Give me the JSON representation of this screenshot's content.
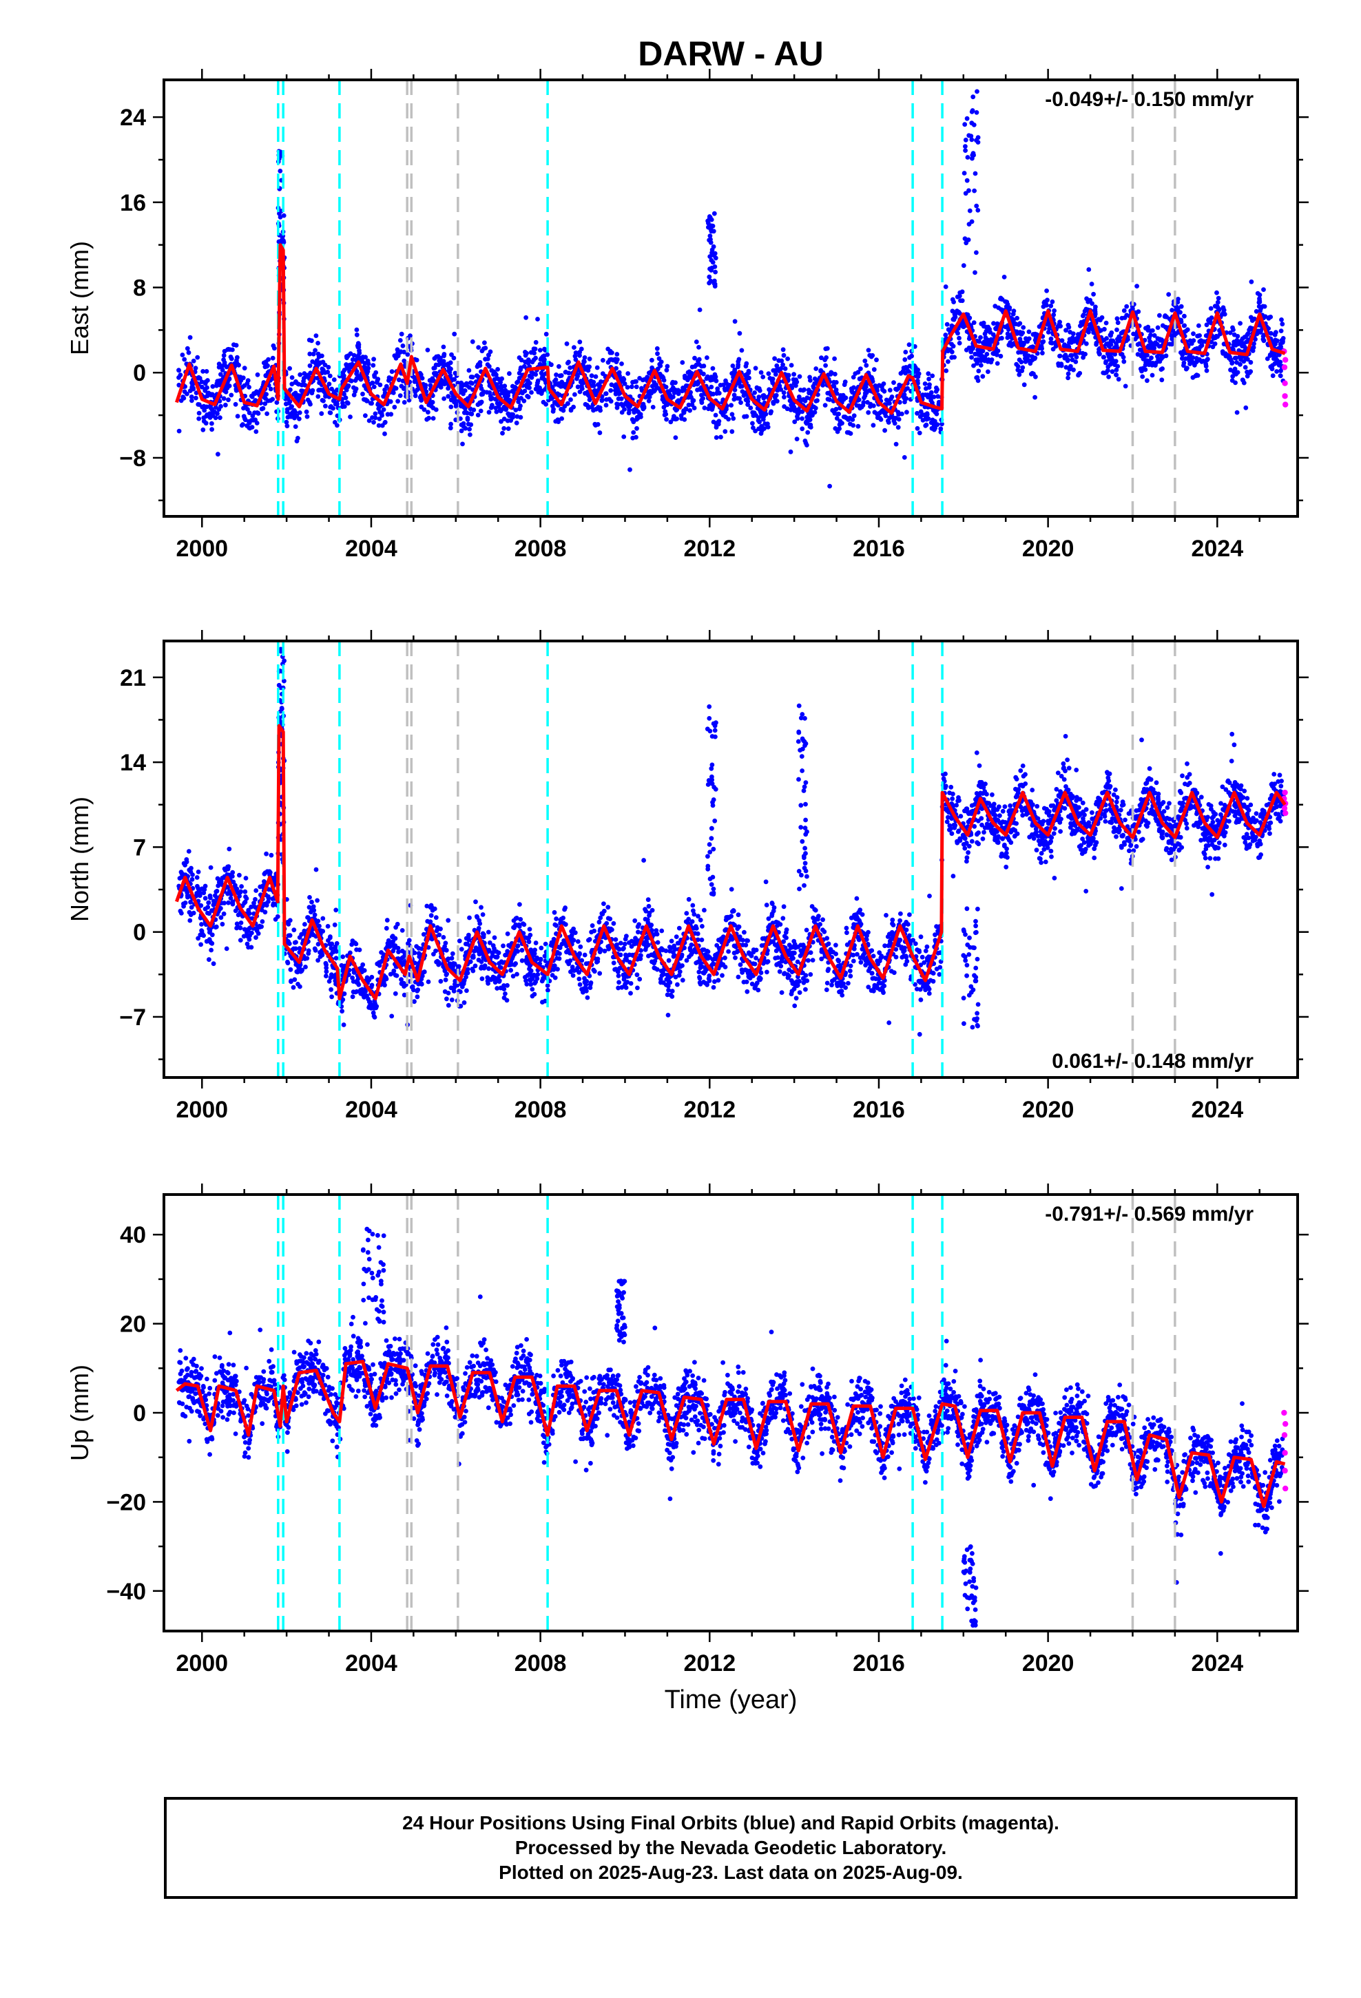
{
  "title": "DARW - AU",
  "footer": {
    "line1": "24 Hour Positions Using Final Orbits (blue) and Rapid Orbits (magenta).",
    "line2": "Processed by the Nevada Geodetic Laboratory.",
    "line3": "Plotted on 2025-Aug-23. Last data on 2025-Aug-09."
  },
  "colors": {
    "final_orbits": "#0000ff",
    "rapid_orbits": "#ff00ff",
    "model_fit": "#ff0000",
    "equipment_change": "#00ffff",
    "other_event": "#c0c0c0"
  },
  "chart_data": [
    {
      "type": "scatter",
      "component": "East",
      "ylabel": "East (mm)",
      "xlabel": "",
      "xlim": [
        1999.1,
        2025.9
      ],
      "ylim": [
        -13.5,
        27.5
      ],
      "xticks": [
        2000,
        2004,
        2008,
        2012,
        2016,
        2020,
        2024
      ],
      "yticks": [
        -8,
        0,
        8,
        16,
        24
      ],
      "rate_label": "-0.049+/- 0.150 mm/yr",
      "rate_position": "top-right",
      "cyan_events": [
        2001.8,
        2001.92,
        2003.25,
        2008.17,
        2016.8,
        2017.5
      ],
      "gray_events": [
        2004.85,
        2004.95,
        2006.05,
        2022.0,
        2023.0
      ],
      "model_fit": [
        [
          1999.4,
          -2.8
        ],
        [
          1999.7,
          0.8
        ],
        [
          2000.0,
          -2.5
        ],
        [
          2000.3,
          -3.0
        ],
        [
          2000.7,
          0.7
        ],
        [
          2001.0,
          -2.8
        ],
        [
          2001.3,
          -3.1
        ],
        [
          2001.7,
          0.6
        ],
        [
          2001.8,
          -2.5
        ],
        [
          2001.85,
          12.0
        ],
        [
          2001.92,
          11.5
        ],
        [
          2001.95,
          -1.5
        ],
        [
          2002.3,
          -3.2
        ],
        [
          2002.7,
          0.4
        ],
        [
          2003.0,
          -2.0
        ],
        [
          2003.25,
          -2.5
        ],
        [
          2003.3,
          -1.5
        ],
        [
          2003.7,
          1.0
        ],
        [
          2004.0,
          -2.0
        ],
        [
          2004.3,
          -3.0
        ],
        [
          2004.7,
          0.8
        ],
        [
          2004.85,
          -1.0
        ],
        [
          2004.95,
          1.5
        ],
        [
          2005.3,
          -2.8
        ],
        [
          2005.7,
          0.3
        ],
        [
          2006.0,
          -2.0
        ],
        [
          2006.3,
          -3.2
        ],
        [
          2006.7,
          0.4
        ],
        [
          2007.0,
          -2.3
        ],
        [
          2007.3,
          -3.3
        ],
        [
          2007.7,
          0.3
        ],
        [
          2008.17,
          0.5
        ],
        [
          2008.2,
          -1.5
        ],
        [
          2008.5,
          -3.0
        ],
        [
          2008.9,
          1.0
        ],
        [
          2009.3,
          -2.9
        ],
        [
          2009.7,
          0.4
        ],
        [
          2010.0,
          -2.2
        ],
        [
          2010.3,
          -3.2
        ],
        [
          2010.7,
          0.2
        ],
        [
          2011.0,
          -2.5
        ],
        [
          2011.3,
          -3.3
        ],
        [
          2011.7,
          0.1
        ],
        [
          2012.0,
          -2.4
        ],
        [
          2012.3,
          -3.4
        ],
        [
          2012.7,
          0.1
        ],
        [
          2013.0,
          -2.5
        ],
        [
          2013.3,
          -3.5
        ],
        [
          2013.7,
          0.0
        ],
        [
          2014.0,
          -2.6
        ],
        [
          2014.3,
          -3.6
        ],
        [
          2014.7,
          -0.1
        ],
        [
          2015.0,
          -2.7
        ],
        [
          2015.3,
          -3.7
        ],
        [
          2015.7,
          -0.2
        ],
        [
          2016.0,
          -2.8
        ],
        [
          2016.3,
          -3.8
        ],
        [
          2016.7,
          -0.3
        ],
        [
          2016.8,
          -0.5
        ],
        [
          2017.0,
          -2.8
        ],
        [
          2017.3,
          -3.2
        ],
        [
          2017.49,
          -3.4
        ],
        [
          2017.51,
          2.0
        ],
        [
          2017.7,
          3.5
        ],
        [
          2018.0,
          5.5
        ],
        [
          2018.3,
          2.5
        ],
        [
          2018.7,
          2.2
        ],
        [
          2019.0,
          5.8
        ],
        [
          2019.3,
          2.3
        ],
        [
          2019.7,
          2.0
        ],
        [
          2020.0,
          5.8
        ],
        [
          2020.3,
          2.2
        ],
        [
          2020.7,
          2.0
        ],
        [
          2021.0,
          5.8
        ],
        [
          2021.3,
          2.1
        ],
        [
          2021.7,
          2.0
        ],
        [
          2022.0,
          5.7
        ],
        [
          2022.3,
          2.0
        ],
        [
          2022.7,
          1.9
        ],
        [
          2023.0,
          5.6
        ],
        [
          2023.3,
          2.0
        ],
        [
          2023.7,
          1.8
        ],
        [
          2024.0,
          5.6
        ],
        [
          2024.3,
          1.9
        ],
        [
          2024.7,
          1.7
        ],
        [
          2025.0,
          5.5
        ],
        [
          2025.3,
          2.2
        ],
        [
          2025.6,
          1.8
        ]
      ],
      "rapid_points": [
        [
          2025.58,
          2.0
        ],
        [
          2025.59,
          0.5
        ],
        [
          2025.6,
          -1.0
        ],
        [
          2025.6,
          -2.2
        ],
        [
          2025.61,
          -3.0
        ],
        [
          2025.61,
          1.2
        ]
      ],
      "spikes": [
        [
          2001.8,
          2001.95,
          8,
          21
        ],
        [
          2011.95,
          2012.15,
          8,
          15
        ],
        [
          2018.0,
          2018.35,
          8,
          27
        ]
      ]
    },
    {
      "type": "scatter",
      "component": "North",
      "ylabel": "North (mm)",
      "xlabel": "",
      "xlim": [
        1999.1,
        2025.9
      ],
      "ylim": [
        -12,
        24
      ],
      "xticks": [
        2000,
        2004,
        2008,
        2012,
        2016,
        2020,
        2024
      ],
      "yticks": [
        -7,
        0,
        7,
        14,
        21
      ],
      "rate_label": "0.061+/- 0.148 mm/yr",
      "rate_position": "bottom-right",
      "cyan_events": [
        2001.8,
        2001.92,
        2003.25,
        2008.17,
        2016.8,
        2017.5
      ],
      "gray_events": [
        2004.85,
        2004.95,
        2006.05,
        2022.0,
        2023.0
      ],
      "model_fit": [
        [
          1999.4,
          2.5
        ],
        [
          1999.6,
          4.5
        ],
        [
          1999.9,
          2.0
        ],
        [
          2000.2,
          0.5
        ],
        [
          2000.6,
          4.5
        ],
        [
          2000.9,
          2.0
        ],
        [
          2001.2,
          0.5
        ],
        [
          2001.6,
          4.5
        ],
        [
          2001.79,
          2.5
        ],
        [
          2001.82,
          17.0
        ],
        [
          2001.92,
          16.5
        ],
        [
          2001.95,
          -1.0
        ],
        [
          2002.3,
          -2.5
        ],
        [
          2002.6,
          1.0
        ],
        [
          2002.9,
          -1.5
        ],
        [
          2003.2,
          -3.0
        ],
        [
          2003.25,
          -5.5
        ],
        [
          2003.5,
          -2.0
        ],
        [
          2003.8,
          -4.0
        ],
        [
          2004.1,
          -5.5
        ],
        [
          2004.4,
          -1.5
        ],
        [
          2004.8,
          -3.5
        ],
        [
          2004.9,
          -2.0
        ],
        [
          2005.1,
          -4.0
        ],
        [
          2005.4,
          0.5
        ],
        [
          2005.8,
          -3.0
        ],
        [
          2006.1,
          -4.0
        ],
        [
          2006.5,
          0.0
        ],
        [
          2006.8,
          -2.5
        ],
        [
          2007.1,
          -3.5
        ],
        [
          2007.5,
          0.0
        ],
        [
          2007.8,
          -2.5
        ],
        [
          2008.17,
          -3.5
        ],
        [
          2008.5,
          0.5
        ],
        [
          2008.8,
          -2.0
        ],
        [
          2009.1,
          -3.5
        ],
        [
          2009.5,
          0.5
        ],
        [
          2009.8,
          -2.0
        ],
        [
          2010.1,
          -3.5
        ],
        [
          2010.5,
          0.5
        ],
        [
          2010.8,
          -2.0
        ],
        [
          2011.1,
          -3.5
        ],
        [
          2011.5,
          0.5
        ],
        [
          2011.8,
          -2.0
        ],
        [
          2012.1,
          -3.5
        ],
        [
          2012.5,
          0.5
        ],
        [
          2012.8,
          -2.0
        ],
        [
          2013.1,
          -3.5
        ],
        [
          2013.5,
          0.5
        ],
        [
          2013.8,
          -2.0
        ],
        [
          2014.1,
          -3.5
        ],
        [
          2014.5,
          0.5
        ],
        [
          2014.8,
          -2.0
        ],
        [
          2015.1,
          -3.8
        ],
        [
          2015.5,
          0.5
        ],
        [
          2015.8,
          -2.2
        ],
        [
          2016.1,
          -3.8
        ],
        [
          2016.5,
          0.5
        ],
        [
          2016.8,
          -2.0
        ],
        [
          2017.1,
          -4.0
        ],
        [
          2017.48,
          0.0
        ],
        [
          2017.5,
          11.5
        ],
        [
          2017.8,
          9.5
        ],
        [
          2018.1,
          8.0
        ],
        [
          2018.4,
          11.0
        ],
        [
          2018.7,
          9.0
        ],
        [
          2019.0,
          8.0
        ],
        [
          2019.4,
          11.5
        ],
        [
          2019.7,
          9.0
        ],
        [
          2020.0,
          8.0
        ],
        [
          2020.4,
          11.5
        ],
        [
          2020.7,
          9.0
        ],
        [
          2021.0,
          8.0
        ],
        [
          2021.4,
          11.5
        ],
        [
          2021.7,
          9.0
        ],
        [
          2022.0,
          7.8
        ],
        [
          2022.4,
          11.5
        ],
        [
          2022.7,
          9.0
        ],
        [
          2023.0,
          7.8
        ],
        [
          2023.4,
          11.5
        ],
        [
          2023.7,
          9.0
        ],
        [
          2024.0,
          7.8
        ],
        [
          2024.4,
          11.5
        ],
        [
          2024.7,
          9.0
        ],
        [
          2025.0,
          8.0
        ],
        [
          2025.4,
          11.5
        ],
        [
          2025.6,
          10.5
        ]
      ],
      "rapid_points": [
        [
          2025.58,
          11.0
        ],
        [
          2025.59,
          10.2
        ],
        [
          2025.6,
          11.5
        ],
        [
          2025.61,
          9.8
        ],
        [
          2025.61,
          10.6
        ]
      ],
      "spikes": [
        [
          2001.8,
          2001.95,
          5,
          24
        ],
        [
          2011.95,
          2012.15,
          3,
          19
        ],
        [
          2014.1,
          2014.3,
          3,
          19
        ],
        [
          2018.0,
          2018.35,
          -8,
          2
        ]
      ]
    },
    {
      "type": "scatter",
      "component": "Up",
      "ylabel": "Up (mm)",
      "xlabel": "Time (year)",
      "xlim": [
        1999.1,
        2025.9
      ],
      "ylim": [
        -49,
        49
      ],
      "xticks": [
        2000,
        2004,
        2008,
        2012,
        2016,
        2020,
        2024
      ],
      "yticks": [
        -40,
        -20,
        0,
        20,
        40
      ],
      "rate_label": "-0.791+/- 0.569 mm/yr",
      "rate_position": "top-right",
      "cyan_events": [
        2001.8,
        2001.92,
        2003.25,
        2008.17,
        2016.8,
        2017.5
      ],
      "gray_events": [
        2004.85,
        2004.95,
        2006.05,
        2022.0,
        2023.0
      ],
      "model_fit": [
        [
          1999.4,
          5.0
        ],
        [
          1999.6,
          6.5
        ],
        [
          1999.9,
          6.0
        ],
        [
          2000.2,
          -4.0
        ],
        [
          2000.4,
          6.0
        ],
        [
          2000.8,
          5.0
        ],
        [
          2001.1,
          -5.0
        ],
        [
          2001.3,
          6.0
        ],
        [
          2001.7,
          5.0
        ],
        [
          2001.85,
          -3.0
        ],
        [
          2001.92,
          6.0
        ],
        [
          2002.0,
          -2.0
        ],
        [
          2002.3,
          9.0
        ],
        [
          2002.7,
          9.5
        ],
        [
          2003.1,
          0.0
        ],
        [
          2003.25,
          -2.0
        ],
        [
          2003.4,
          11.0
        ],
        [
          2003.8,
          11.5
        ],
        [
          2004.1,
          1.0
        ],
        [
          2004.4,
          11.0
        ],
        [
          2004.85,
          10.0
        ],
        [
          2005.1,
          0.0
        ],
        [
          2005.4,
          10.5
        ],
        [
          2005.8,
          10.5
        ],
        [
          2006.1,
          -1.0
        ],
        [
          2006.4,
          9.0
        ],
        [
          2006.8,
          9.0
        ],
        [
          2007.1,
          -2.0
        ],
        [
          2007.4,
          8.0
        ],
        [
          2007.8,
          8.0
        ],
        [
          2008.17,
          -5.0
        ],
        [
          2008.4,
          6.0
        ],
        [
          2008.8,
          6.0
        ],
        [
          2009.1,
          -4.0
        ],
        [
          2009.4,
          5.0
        ],
        [
          2009.8,
          5.0
        ],
        [
          2010.1,
          -5.0
        ],
        [
          2010.4,
          5.0
        ],
        [
          2010.8,
          4.5
        ],
        [
          2011.1,
          -6.0
        ],
        [
          2011.4,
          3.5
        ],
        [
          2011.8,
          3.0
        ],
        [
          2012.1,
          -7.0
        ],
        [
          2012.4,
          3.0
        ],
        [
          2012.8,
          3.0
        ],
        [
          2013.1,
          -8.0
        ],
        [
          2013.4,
          2.5
        ],
        [
          2013.8,
          2.5
        ],
        [
          2014.1,
          -8.5
        ],
        [
          2014.4,
          2.0
        ],
        [
          2014.8,
          2.0
        ],
        [
          2015.1,
          -9.0
        ],
        [
          2015.4,
          1.5
        ],
        [
          2015.8,
          1.5
        ],
        [
          2016.1,
          -10.0
        ],
        [
          2016.4,
          1.0
        ],
        [
          2016.8,
          1.0
        ],
        [
          2017.1,
          -10.5
        ],
        [
          2017.5,
          2.0
        ],
        [
          2017.8,
          1.5
        ],
        [
          2018.1,
          -10.0
        ],
        [
          2018.4,
          0.5
        ],
        [
          2018.8,
          0.5
        ],
        [
          2019.1,
          -11.0
        ],
        [
          2019.4,
          0.0
        ],
        [
          2019.8,
          0.0
        ],
        [
          2020.1,
          -12.0
        ],
        [
          2020.4,
          -1.0
        ],
        [
          2020.8,
          -1.0
        ],
        [
          2021.1,
          -13.0
        ],
        [
          2021.4,
          -2.0
        ],
        [
          2021.8,
          -2.0
        ],
        [
          2022.1,
          -15.0
        ],
        [
          2022.4,
          -5.0
        ],
        [
          2022.8,
          -6.0
        ],
        [
          2023.1,
          -19.0
        ],
        [
          2023.4,
          -9.0
        ],
        [
          2023.8,
          -9.5
        ],
        [
          2024.1,
          -20.0
        ],
        [
          2024.4,
          -10.0
        ],
        [
          2024.8,
          -10.5
        ],
        [
          2025.1,
          -21.0
        ],
        [
          2025.4,
          -11.0
        ],
        [
          2025.6,
          -11.5
        ]
      ],
      "rapid_points": [
        [
          2025.58,
          0.0
        ],
        [
          2025.59,
          -5.0
        ],
        [
          2025.6,
          -9.0
        ],
        [
          2025.6,
          -13.0
        ],
        [
          2025.61,
          -17.0
        ],
        [
          2025.61,
          -2.5
        ]
      ],
      "spikes": [
        [
          2003.8,
          2004.3,
          20,
          42
        ],
        [
          2009.8,
          2010.0,
          15,
          30
        ],
        [
          2018.0,
          2018.3,
          -48,
          -30
        ]
      ]
    }
  ]
}
